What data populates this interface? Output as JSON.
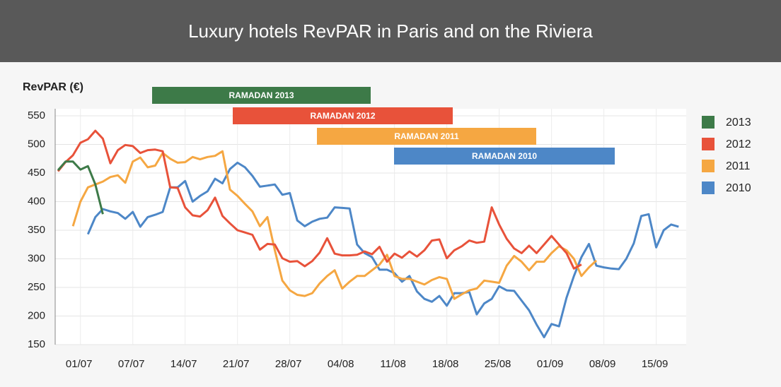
{
  "chart_data": {
    "type": "line",
    "title": "Luxury hotels RevPAR in Paris and on the Riviera",
    "y_label": "RevPAR (€)",
    "ylim": [
      150,
      550
    ],
    "yticks": [
      150,
      200,
      250,
      300,
      350,
      400,
      450,
      500,
      550
    ],
    "grid": true,
    "legend": "right",
    "categories": [
      null,
      null,
      null,
      "01/07",
      null,
      null,
      null,
      null,
      null,
      null,
      "07/07",
      null,
      null,
      null,
      null,
      null,
      null,
      "14/07",
      null,
      null,
      null,
      null,
      null,
      null,
      "21/07",
      null,
      null,
      null,
      null,
      null,
      null,
      "28/07",
      null,
      null,
      null,
      null,
      null,
      null,
      "04/08",
      null,
      null,
      null,
      null,
      null,
      null,
      "11/08",
      null,
      null,
      null,
      null,
      null,
      null,
      "18/08",
      null,
      null,
      null,
      null,
      null,
      null,
      "25/08",
      null,
      null,
      null,
      null,
      null,
      null,
      "01/09",
      null,
      null,
      null,
      null,
      null,
      null,
      "08/09",
      null,
      null,
      null,
      null,
      null,
      null,
      "15/09",
      null,
      null,
      null
    ],
    "series": [
      {
        "name": "2013",
        "color": "#3d7a48",
        "values": [
          455,
          470,
          470,
          456,
          462,
          430,
          378,
          null,
          null,
          null,
          null,
          null,
          null,
          null,
          null,
          null,
          null,
          null,
          null,
          null,
          null,
          null,
          null,
          null,
          null,
          null,
          null,
          null,
          null,
          null,
          null,
          null,
          null,
          null,
          null,
          null,
          null,
          null,
          null,
          null,
          null,
          null,
          null,
          null,
          null,
          null,
          null,
          null,
          null,
          null,
          null,
          null,
          null,
          null,
          null,
          null,
          null,
          null,
          null,
          null,
          null,
          null,
          null,
          null,
          null,
          null,
          null,
          null,
          null,
          null,
          null,
          null,
          null,
          null,
          null,
          null,
          null,
          null,
          null,
          null,
          null,
          null,
          null,
          null
        ]
      },
      {
        "name": "2012",
        "color": "#e8523a",
        "values": [
          453,
          469,
          481,
          503,
          509,
          524,
          510,
          467,
          490,
          499,
          497,
          485,
          490,
          491,
          488,
          425,
          424,
          390,
          376,
          374,
          385,
          407,
          375,
          362,
          350,
          346,
          342,
          316,
          326,
          325,
          301,
          295,
          296,
          287,
          296,
          311,
          336,
          309,
          306,
          306,
          307,
          313,
          308,
          321,
          295,
          309,
          302,
          313,
          304,
          315,
          332,
          334,
          301,
          315,
          322,
          332,
          328,
          330,
          390,
          360,
          335,
          318,
          310,
          323,
          310,
          325,
          340,
          325,
          310,
          283,
          290,
          null,
          null,
          null,
          null,
          null,
          null,
          null,
          null,
          null,
          null,
          null,
          null,
          null
        ]
      },
      {
        "name": "2011",
        "color": "#f5a742",
        "values": [
          null,
          null,
          357,
          400,
          425,
          430,
          435,
          443,
          446,
          433,
          470,
          477,
          460,
          463,
          485,
          475,
          468,
          469,
          478,
          474,
          478,
          480,
          488,
          421,
          410,
          396,
          383,
          357,
          373,
          315,
          262,
          245,
          237,
          235,
          240,
          257,
          270,
          280,
          248,
          260,
          270,
          270,
          280,
          290,
          307,
          270,
          265,
          265,
          260,
          255,
          263,
          268,
          265,
          230,
          238,
          245,
          248,
          262,
          260,
          258,
          288,
          305,
          295,
          280,
          295,
          295,
          310,
          322,
          315,
          300,
          270,
          285,
          297,
          null,
          null,
          null,
          null,
          null,
          null,
          null,
          null,
          null,
          null,
          null
        ]
      },
      {
        "name": "2010",
        "color": "#4d87c7",
        "values": [
          null,
          null,
          null,
          null,
          343,
          373,
          387,
          383,
          380,
          370,
          382,
          356,
          373,
          377,
          382,
          425,
          425,
          436,
          400,
          410,
          418,
          440,
          432,
          457,
          468,
          460,
          445,
          426,
          428,
          430,
          412,
          415,
          367,
          357,
          365,
          370,
          372,
          390,
          389,
          388,
          325,
          310,
          303,
          281,
          281,
          275,
          260,
          270,
          243,
          230,
          225,
          235,
          218,
          240,
          240,
          242,
          203,
          222,
          230,
          252,
          245,
          244,
          227,
          210,
          185,
          163,
          186,
          182,
          232,
          270,
          303,
          326,
          288,
          285,
          283,
          282,
          300,
          327,
          375,
          378,
          320,
          350,
          360,
          356
        ]
      }
    ],
    "annotations": [
      {
        "text": "RAMADAN 2013",
        "color": "#3d7a48"
      },
      {
        "text": "RAMADAN 2012",
        "color": "#e8523a"
      },
      {
        "text": "RAMADAN 2011",
        "color": "#f5a742"
      },
      {
        "text": "RAMADAN 2010",
        "color": "#4d87c7"
      }
    ]
  }
}
